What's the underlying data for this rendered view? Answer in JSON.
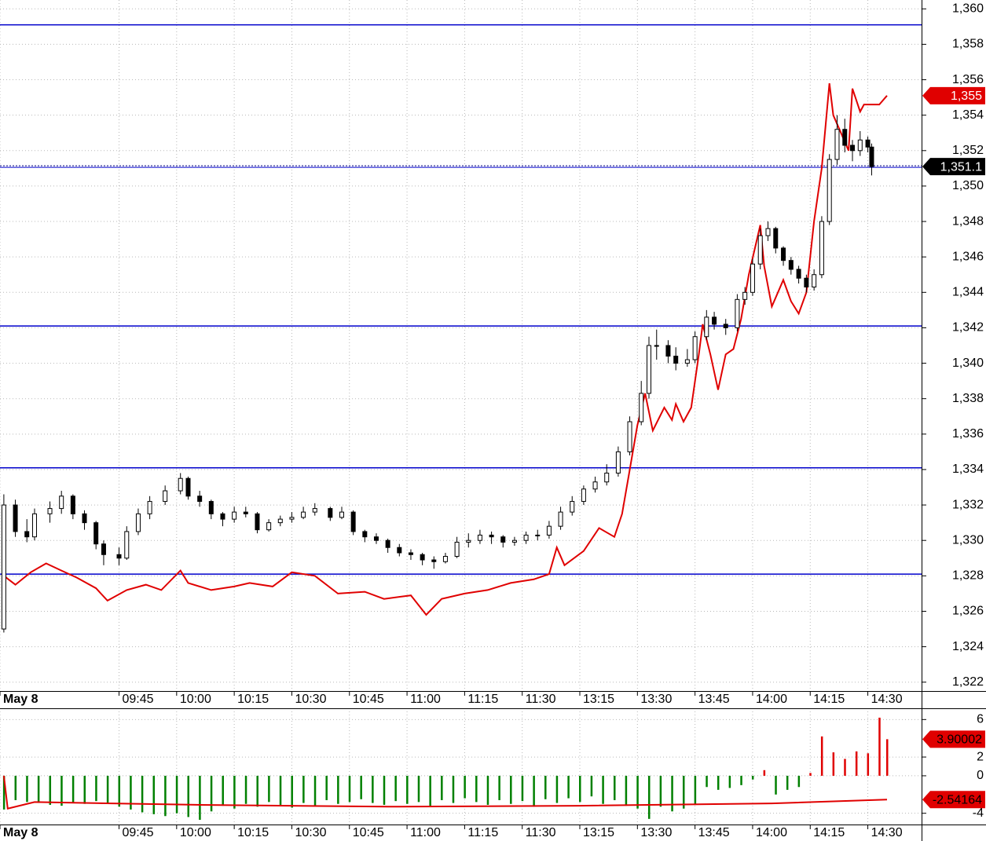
{
  "chart_data": [
    {
      "type": "candlestick",
      "xlim": [
        -1,
        239
      ],
      "xticks": [
        {
          "value": -1,
          "label": "May 8"
        },
        {
          "value": 30,
          "label": "09:45"
        },
        {
          "value": 45,
          "label": "10:00"
        },
        {
          "value": 60,
          "label": "10:15"
        },
        {
          "value": 75,
          "label": "10:30"
        },
        {
          "value": 90,
          "label": "10:45"
        },
        {
          "value": 105,
          "label": "11:00"
        },
        {
          "value": 120,
          "label": "11:15"
        },
        {
          "value": 135,
          "label": "11:30"
        },
        {
          "value": 150,
          "label": "13:15"
        },
        {
          "value": 165,
          "label": "13:30"
        },
        {
          "value": 180,
          "label": "13:45"
        },
        {
          "value": 195,
          "label": "14:00"
        },
        {
          "value": 210,
          "label": "14:15"
        },
        {
          "value": 225,
          "label": "14:30"
        }
      ],
      "ylim": [
        1321.5,
        1360.5
      ],
      "yticks": [
        {
          "value": 1322,
          "label": "1,322"
        },
        {
          "value": 1324,
          "label": "1,324"
        },
        {
          "value": 1326,
          "label": "1,326"
        },
        {
          "value": 1328,
          "label": "1,328"
        },
        {
          "value": 1330,
          "label": "1,330"
        },
        {
          "value": 1332,
          "label": "1,332"
        },
        {
          "value": 1334,
          "label": "1,334"
        },
        {
          "value": 1336,
          "label": "1,336"
        },
        {
          "value": 1338,
          "label": "1,338"
        },
        {
          "value": 1340,
          "label": "1,340"
        },
        {
          "value": 1342,
          "label": "1,342"
        },
        {
          "value": 1344,
          "label": "1,344"
        },
        {
          "value": 1346,
          "label": "1,346"
        },
        {
          "value": 1348,
          "label": "1,348"
        },
        {
          "value": 1350,
          "label": "1,350"
        },
        {
          "value": 1352,
          "label": "1,352"
        },
        {
          "value": 1354,
          "label": "1,354"
        },
        {
          "value": 1356,
          "label": "1,356"
        },
        {
          "value": 1358,
          "label": "1,358"
        },
        {
          "value": 1360,
          "label": "1,360"
        }
      ],
      "grid": true,
      "hlines": [
        1359.1,
        1342.1,
        1334.1,
        1328.1
      ],
      "hline_color": "#0000cc",
      "candles": {
        "x": [
          0,
          3,
          6,
          8,
          12,
          15,
          18,
          21,
          24,
          26,
          30,
          32,
          35,
          38,
          42,
          46,
          48,
          51,
          54,
          57,
          60,
          63,
          66,
          69,
          72,
          75,
          78,
          81,
          85,
          88,
          91,
          94,
          97,
          100,
          103,
          106,
          109,
          112,
          115,
          118,
          121,
          124,
          127,
          130,
          133,
          136,
          139,
          142,
          145,
          148,
          151,
          154,
          157,
          160,
          163,
          166,
          168,
          170,
          173,
          175,
          178,
          180,
          183,
          185,
          188,
          191,
          193,
          195,
          197,
          199,
          201,
          203,
          205,
          207,
          209,
          211,
          213,
          215,
          217,
          219,
          221,
          223,
          225,
          226
        ],
        "open": [
          1325.0,
          1332.0,
          1330.5,
          1330.2,
          1331.5,
          1331.8,
          1332.5,
          1331.5,
          1331.0,
          1329.8,
          1329.2,
          1329.0,
          1330.5,
          1331.5,
          1332.2,
          1332.8,
          1333.5,
          1332.5,
          1332.2,
          1331.5,
          1331.2,
          1331.6,
          1331.5,
          1330.6,
          1331.0,
          1331.2,
          1331.3,
          1331.6,
          1331.8,
          1331.3,
          1331.6,
          1330.5,
          1330.2,
          1330.0,
          1329.6,
          1329.3,
          1329.2,
          1328.9,
          1328.8,
          1329.1,
          1329.9,
          1330.0,
          1330.3,
          1330.2,
          1329.9,
          1330.0,
          1330.3,
          1330.3,
          1330.8,
          1331.6,
          1332.2,
          1332.9,
          1333.3,
          1333.8,
          1335.0,
          1336.7,
          1338.3,
          1341.0,
          1341.0,
          1340.4,
          1340.0,
          1340.2,
          1341.5,
          1342.6,
          1342.2,
          1342.0,
          1343.6,
          1344.0,
          1345.6,
          1347.2,
          1347.6,
          1346.5,
          1345.8,
          1345.3,
          1344.8,
          1344.3,
          1345.0,
          1348.0,
          1351.5,
          1353.2,
          1352.3,
          1352.0,
          1352.6,
          1352.2
        ],
        "high": [
          1332.6,
          1332.3,
          1331.2,
          1331.8,
          1332.2,
          1332.8,
          1332.6,
          1331.7,
          1331.1,
          1330.0,
          1329.6,
          1330.8,
          1331.8,
          1332.5,
          1333.1,
          1333.8,
          1333.6,
          1332.8,
          1332.3,
          1331.6,
          1331.9,
          1331.9,
          1331.6,
          1331.2,
          1331.4,
          1331.6,
          1331.9,
          1332.1,
          1331.9,
          1331.9,
          1331.7,
          1330.6,
          1330.4,
          1330.1,
          1329.8,
          1329.5,
          1329.3,
          1329.1,
          1329.3,
          1330.2,
          1330.4,
          1330.6,
          1330.5,
          1330.3,
          1330.2,
          1330.5,
          1330.6,
          1331.1,
          1331.9,
          1332.5,
          1333.1,
          1333.6,
          1334.3,
          1335.3,
          1337.0,
          1339.0,
          1341.5,
          1341.9,
          1341.3,
          1340.9,
          1340.8,
          1341.8,
          1343.0,
          1342.9,
          1342.5,
          1343.9,
          1344.3,
          1345.9,
          1347.6,
          1348.0,
          1347.7,
          1346.6,
          1346.0,
          1345.5,
          1345.0,
          1345.3,
          1348.3,
          1351.8,
          1354.0,
          1353.8,
          1352.6,
          1353.1,
          1352.8,
          1352.4
        ],
        "low": [
          1324.8,
          1330.2,
          1329.9,
          1330.0,
          1331.0,
          1331.5,
          1331.2,
          1330.6,
          1329.5,
          1328.6,
          1328.6,
          1328.9,
          1330.3,
          1331.2,
          1332.0,
          1332.6,
          1332.3,
          1331.9,
          1331.2,
          1330.8,
          1331.0,
          1331.3,
          1330.4,
          1330.5,
          1330.8,
          1331.0,
          1331.2,
          1331.4,
          1331.1,
          1331.2,
          1330.3,
          1329.9,
          1329.8,
          1329.3,
          1329.1,
          1328.9,
          1328.6,
          1328.4,
          1328.7,
          1329.0,
          1329.6,
          1329.8,
          1329.8,
          1329.6,
          1329.7,
          1329.8,
          1330.0,
          1330.1,
          1330.6,
          1331.4,
          1332.0,
          1332.7,
          1333.1,
          1333.6,
          1334.8,
          1336.5,
          1338.0,
          1340.2,
          1340.0,
          1339.6,
          1339.8,
          1340.0,
          1341.3,
          1341.9,
          1341.6,
          1341.8,
          1343.3,
          1343.8,
          1345.3,
          1346.9,
          1346.2,
          1345.5,
          1345.0,
          1344.5,
          1344.0,
          1344.1,
          1344.8,
          1347.8,
          1351.2,
          1351.9,
          1351.4,
          1351.7,
          1351.9,
          1350.6
        ],
        "close": [
          1332.0,
          1330.5,
          1330.2,
          1331.5,
          1331.8,
          1332.5,
          1331.5,
          1331.0,
          1329.8,
          1329.2,
          1329.0,
          1330.5,
          1331.5,
          1332.2,
          1332.8,
          1333.5,
          1332.5,
          1332.2,
          1331.5,
          1331.2,
          1331.6,
          1331.5,
          1330.6,
          1331.0,
          1331.2,
          1331.3,
          1331.6,
          1331.8,
          1331.3,
          1331.6,
          1330.5,
          1330.2,
          1330.0,
          1329.6,
          1329.3,
          1329.2,
          1328.9,
          1328.8,
          1329.1,
          1329.9,
          1330.0,
          1330.3,
          1330.2,
          1329.9,
          1330.0,
          1330.3,
          1330.3,
          1330.8,
          1331.6,
          1332.2,
          1332.9,
          1333.3,
          1333.8,
          1335.0,
          1336.7,
          1338.3,
          1341.0,
          1341.0,
          1340.4,
          1340.0,
          1340.2,
          1341.5,
          1342.6,
          1342.2,
          1342.0,
          1343.6,
          1344.0,
          1345.6,
          1347.2,
          1347.6,
          1346.5,
          1345.8,
          1345.3,
          1344.8,
          1344.3,
          1345.0,
          1348.0,
          1351.5,
          1353.2,
          1352.3,
          1352.0,
          1352.6,
          1352.2,
          1351.1
        ],
        "close_label": "1,351.1",
        "color_up": "#ffffff",
        "color_down": "#000000"
      },
      "line": {
        "x": [
          0,
          3,
          7,
          11,
          15,
          19,
          24,
          27,
          32,
          37,
          41,
          46,
          48,
          54,
          60,
          64,
          70,
          75,
          81,
          87,
          94,
          99,
          106,
          110,
          114,
          120,
          126,
          132,
          138,
          142,
          144,
          146,
          151,
          155,
          159,
          161,
          163,
          165,
          167,
          169,
          172,
          174,
          175,
          177,
          179,
          181,
          182,
          184,
          186,
          188,
          190,
          192,
          194,
          197,
          198,
          200,
          203,
          205,
          207,
          209,
          211,
          213,
          215,
          216,
          218,
          220,
          221,
          223,
          224,
          228,
          230
        ],
        "values": [
          1328.0,
          1327.5,
          1328.2,
          1328.7,
          1328.3,
          1327.9,
          1327.3,
          1326.6,
          1327.2,
          1327.5,
          1327.2,
          1328.3,
          1327.6,
          1327.2,
          1327.4,
          1327.6,
          1327.4,
          1328.2,
          1328.0,
          1327.0,
          1327.1,
          1326.7,
          1326.9,
          1325.8,
          1326.7,
          1327.0,
          1327.2,
          1327.6,
          1327.8,
          1328.1,
          1329.6,
          1328.6,
          1329.4,
          1330.7,
          1330.2,
          1331.5,
          1334.0,
          1336.5,
          1338.3,
          1336.2,
          1337.5,
          1336.8,
          1337.7,
          1336.7,
          1337.5,
          1340.5,
          1342.2,
          1340.5,
          1338.5,
          1340.5,
          1340.8,
          1342.5,
          1345.0,
          1347.8,
          1345.5,
          1343.2,
          1344.7,
          1343.5,
          1342.8,
          1344.0,
          1348.0,
          1351.0,
          1355.8,
          1354.0,
          1353.0,
          1352.0,
          1355.5,
          1354.2,
          1354.6,
          1354.6,
          1355.1
        ],
        "last_label": "1,355",
        "color": "#e00000"
      }
    },
    {
      "type": "bar",
      "xlim": [
        -1,
        239
      ],
      "ylim": [
        -5.2,
        7.2
      ],
      "yticks": [
        6,
        2,
        0,
        -4
      ],
      "grid": true,
      "x": [
        0,
        3,
        6,
        9,
        12,
        15,
        18,
        21,
        24,
        27,
        30,
        33,
        36,
        39,
        42,
        45,
        48,
        51,
        54,
        57,
        60,
        63,
        66,
        69,
        72,
        75,
        78,
        81,
        84,
        87,
        90,
        93,
        96,
        99,
        102,
        105,
        108,
        111,
        114,
        117,
        120,
        123,
        126,
        129,
        132,
        135,
        138,
        141,
        144,
        147,
        150,
        153,
        156,
        159,
        162,
        165,
        168,
        171,
        174,
        177,
        180,
        183,
        186,
        189,
        192,
        195,
        198,
        201,
        204,
        207,
        210,
        213,
        216,
        219,
        222,
        225,
        228,
        230
      ],
      "values": [
        -3.6,
        -2.6,
        -2.8,
        -2.9,
        -3.1,
        -3.2,
        -2.9,
        -3.0,
        -2.7,
        -2.9,
        -3.3,
        -3.6,
        -3.9,
        -4.1,
        -4.3,
        -4.0,
        -4.4,
        -4.7,
        -3.8,
        -3.2,
        -3.5,
        -3.0,
        -3.3,
        -2.8,
        -3.1,
        -3.4,
        -2.9,
        -3.2,
        -2.6,
        -3.0,
        -2.8,
        -2.5,
        -2.9,
        -3.1,
        -2.7,
        -3.0,
        -2.8,
        -3.2,
        -2.6,
        -2.9,
        -2.4,
        -2.8,
        -3.1,
        -2.6,
        -3.0,
        -2.7,
        -3.3,
        -2.5,
        -2.9,
        -2.4,
        -2.8,
        -2.2,
        -3.0,
        -2.6,
        -3.2,
        -3.5,
        -4.6,
        -3.3,
        -3.8,
        -3.5,
        -3.1,
        -1.2,
        -1.5,
        -1.3,
        -1.0,
        -0.4,
        0.6,
        -2.0,
        -1.5,
        -1.2,
        0.3,
        4.2,
        2.5,
        1.8,
        2.6,
        2.4,
        6.2,
        3.90002
      ],
      "color_up": "#e00000",
      "color_down": "#008000",
      "line": {
        "x": [
          0,
          1,
          8,
          50,
          100,
          150,
          200,
          230
        ],
        "values": [
          0.0,
          -3.5,
          -2.8,
          -3.1,
          -3.3,
          -3.2,
          -2.95,
          -2.54164
        ],
        "color": "#e00000"
      }
    }
  ]
}
